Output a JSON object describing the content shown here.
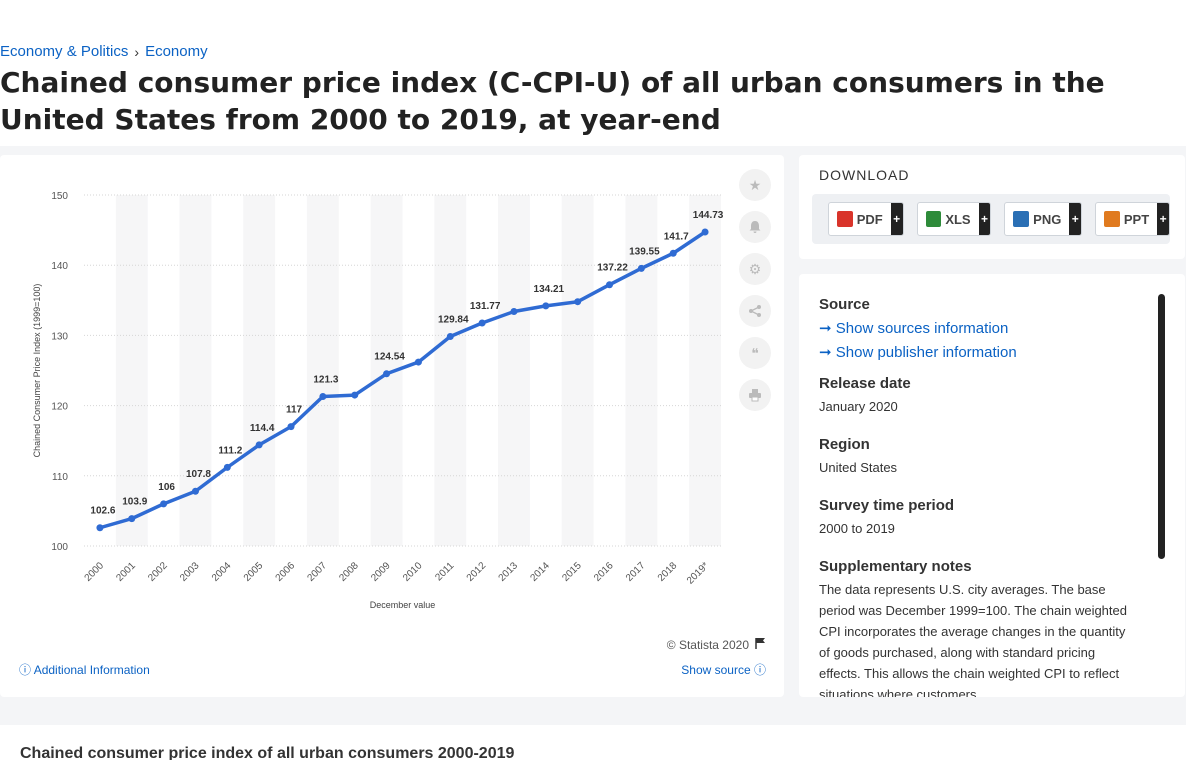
{
  "breadcrumb": [
    "Economy & Politics",
    "Economy"
  ],
  "title": "Chained consumer price index (C-CPI-U) of all urban consumers in the United States from 2000 to 2019, at year-end",
  "chart_data": {
    "type": "line",
    "categories": [
      "2000",
      "2001",
      "2002",
      "2003",
      "2004",
      "2005",
      "2006",
      "2007",
      "2008",
      "2009",
      "2010",
      "2011",
      "2012",
      "2013",
      "2014",
      "2015",
      "2016",
      "2017",
      "2018",
      "2019*"
    ],
    "values": [
      102.6,
      103.9,
      106,
      107.8,
      111.2,
      114.4,
      117,
      121.3,
      121.5,
      124.54,
      126.2,
      129.84,
      131.77,
      133.4,
      134.21,
      134.8,
      137.22,
      139.55,
      141.7,
      144.73
    ],
    "labels": [
      "102.6",
      "103.9",
      "106",
      "107.8",
      "111.2",
      "114.4",
      "117",
      "121.3",
      "",
      "124.54",
      "",
      "129.84",
      "131.77",
      "",
      "134.21",
      "",
      "137.22",
      "139.55",
      "141.7",
      "144.73"
    ],
    "xlabel": "December value",
    "ylabel": "Chained Consumer Price Index (1999=100)",
    "ylim": [
      100,
      150
    ],
    "yticks": [
      100,
      110,
      120,
      130,
      140,
      150
    ],
    "grid": true,
    "line_color": "#2f6bd3"
  },
  "chart_footer": {
    "copyright": "© Statista 2020",
    "additional": "Additional Information",
    "show_source": "Show source"
  },
  "download": {
    "title": "DOWNLOAD",
    "buttons": [
      {
        "label": "PDF",
        "color": "#d9342b"
      },
      {
        "label": "XLS",
        "color": "#2e8b3a"
      },
      {
        "label": "PNG",
        "color": "#2a6fb5"
      },
      {
        "label": "PPT",
        "color": "#e07a1f"
      }
    ],
    "plus": "+"
  },
  "info": {
    "source_h": "Source",
    "show_sources": "Show sources information",
    "show_publisher": "Show publisher information",
    "release_h": "Release date",
    "release_v": "January 2020",
    "region_h": "Region",
    "region_v": "United States",
    "survey_h": "Survey time period",
    "survey_v": "2000 to 2019",
    "notes_h": "Supplementary notes",
    "notes_v": "The data represents U.S. city averages. The base period was December 1999=100. The chain weighted CPI incorporates the average changes in the quantity of goods purchased, along with standard pricing effects. This allows the chain weighted CPI to reflect situations where customers"
  },
  "bottom_title": "Chained consumer price index of all urban consumers 2000-2019"
}
